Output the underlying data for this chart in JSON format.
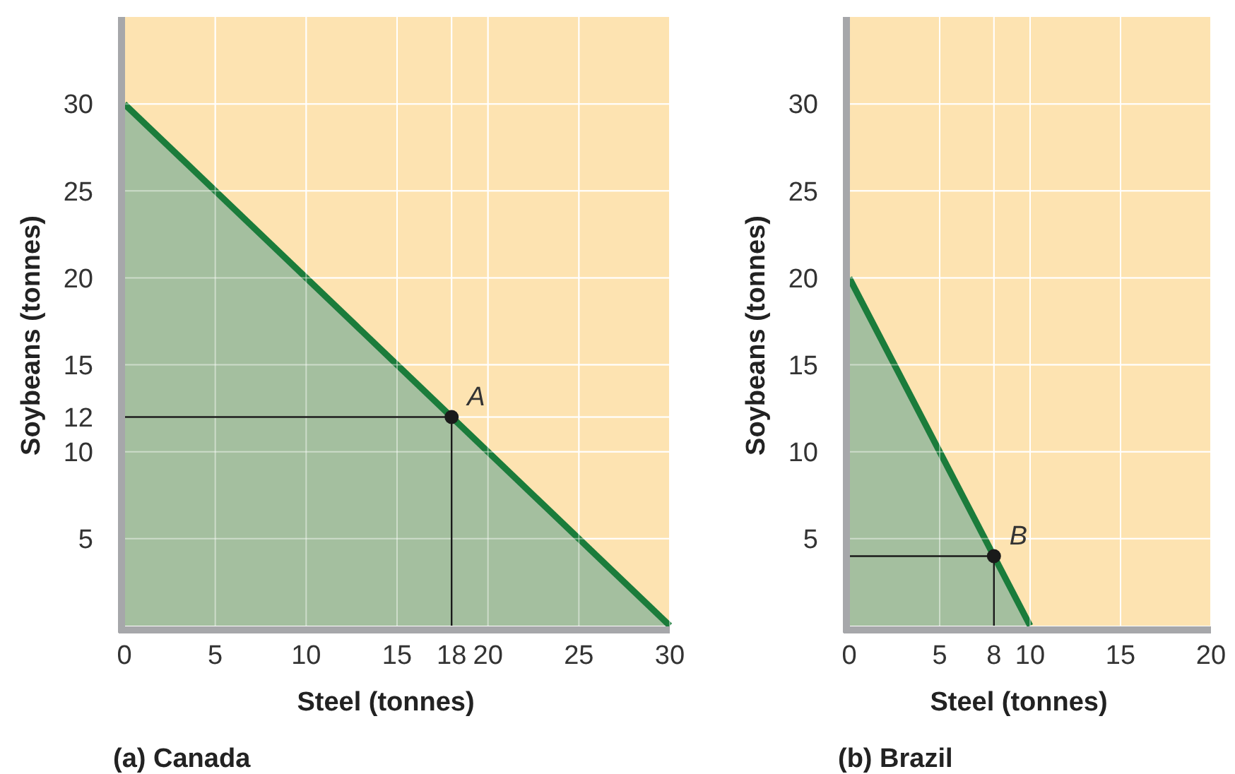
{
  "chart_data": [
    {
      "type": "area",
      "title": "(a) Canada",
      "xlabel": "Steel (tonnes)",
      "ylabel": "Soybeans (tonnes)",
      "xlim": [
        0,
        30
      ],
      "ylim": [
        0,
        35
      ],
      "xticks": [
        0,
        5,
        10,
        15,
        18,
        20,
        25,
        30
      ],
      "yticks": [
        5,
        10,
        12,
        15,
        20,
        25,
        30
      ],
      "grid": true,
      "series": [
        {
          "color": "#1b7c3b",
          "x": [
            0,
            30
          ],
          "values": [
            30,
            0
          ]
        },
        {
          "type": "scatter",
          "marker": "circle",
          "color": "#1a1a1a",
          "x": [
            18
          ],
          "values": [
            12
          ]
        }
      ],
      "annotations": [
        {
          "text": "A",
          "x": 18,
          "y": 12
        }
      ]
    },
    {
      "type": "area",
      "title": "(b) Brazil",
      "xlabel": "Steel (tonnes)",
      "ylabel": "Soybeans (tonnes)",
      "xlim": [
        0,
        20
      ],
      "ylim": [
        0,
        35
      ],
      "xticks": [
        0,
        5,
        8,
        10,
        15,
        20
      ],
      "yticks": [
        5,
        10,
        15,
        20,
        25,
        30
      ],
      "grid": true,
      "series": [
        {
          "color": "#1b7c3b",
          "x": [
            0,
            10
          ],
          "values": [
            20,
            0
          ]
        },
        {
          "type": "scatter",
          "marker": "circle",
          "color": "#1a1a1a",
          "x": [
            8
          ],
          "values": [
            4
          ]
        }
      ],
      "annotations": [
        {
          "text": "B",
          "x": 8,
          "y": 4
        }
      ]
    }
  ]
}
